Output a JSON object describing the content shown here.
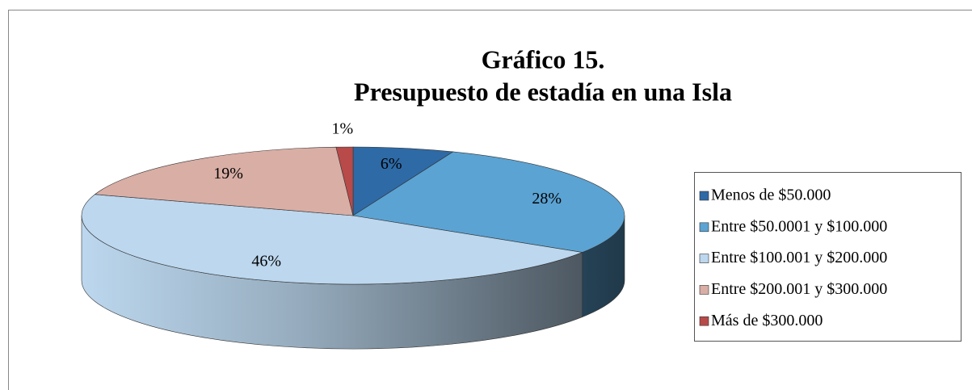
{
  "chart_data": {
    "type": "pie",
    "title": "Gráfico 15.",
    "subtitle": "Presupuesto de estadía en una Isla",
    "categories": [
      "Menos de $50.000",
      "Entre $50.0001 y $100.000",
      "Entre $100.001 y $200.000",
      "Entre $200.001 y $300.000",
      "Más de $300.000"
    ],
    "values": [
      6,
      28,
      46,
      19,
      1
    ],
    "value_labels": [
      "6%",
      "28%",
      "46%",
      "19%",
      "1%"
    ],
    "colors": [
      "#2e6aa6",
      "#5ba3d3",
      "#bcd7ee",
      "#d9aea5",
      "#b84a4a"
    ],
    "legend": "right"
  }
}
